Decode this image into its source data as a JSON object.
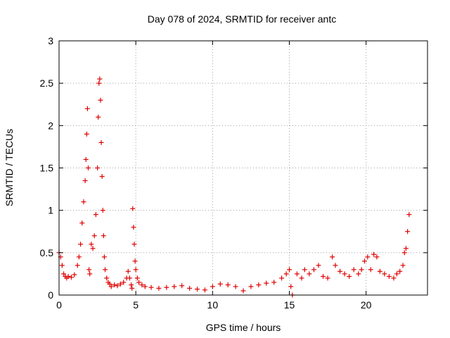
{
  "chart_data": {
    "type": "scatter",
    "title": "Day 078 of 2024, SRMTID for receiver antc",
    "xlabel": "GPS time / hours",
    "ylabel": "SRMTID / TECUs",
    "xlim": [
      0,
      24
    ],
    "ylim": [
      0,
      3
    ],
    "xticks": [
      0,
      5,
      10,
      15,
      20
    ],
    "xtick_labels": [
      "0",
      "5",
      "10",
      "15",
      "20"
    ],
    "yticks": [
      0,
      0.5,
      1,
      1.5,
      2,
      2.5,
      3
    ],
    "ytick_labels": [
      "0",
      "0.5",
      "1",
      "1.5",
      "2",
      "2.5",
      "3"
    ],
    "grid": true,
    "marker": "+",
    "color": "#e00000",
    "series": [
      {
        "name": "SRMTID",
        "x": [
          0.0,
          0.1,
          0.2,
          0.3,
          0.4,
          0.5,
          0.6,
          0.8,
          1.0,
          1.2,
          1.3,
          1.4,
          1.5,
          1.6,
          1.7,
          1.75,
          1.8,
          1.85,
          1.9,
          1.95,
          2.0,
          2.1,
          2.2,
          2.3,
          2.4,
          2.5,
          2.55,
          2.6,
          2.65,
          2.7,
          2.75,
          2.8,
          2.85,
          2.9,
          2.95,
          3.0,
          3.1,
          3.2,
          3.3,
          3.4,
          3.6,
          3.8,
          4.0,
          4.2,
          4.4,
          4.5,
          4.6,
          4.7,
          4.75,
          4.8,
          4.85,
          4.9,
          4.95,
          5.0,
          5.1,
          5.2,
          5.4,
          5.6,
          6.0,
          6.5,
          7.0,
          7.5,
          8.0,
          8.5,
          9.0,
          9.5,
          10.0,
          10.5,
          11.0,
          11.5,
          12.0,
          12.5,
          13.0,
          13.5,
          14.0,
          14.5,
          14.8,
          15.0,
          15.1,
          15.2,
          15.5,
          15.8,
          16.0,
          16.3,
          16.6,
          16.9,
          17.2,
          17.5,
          17.8,
          18.0,
          18.3,
          18.6,
          18.9,
          19.2,
          19.5,
          19.7,
          19.9,
          20.1,
          20.3,
          20.5,
          20.7,
          20.9,
          21.2,
          21.5,
          21.8,
          22.0,
          22.2,
          22.4,
          22.5,
          22.6,
          22.7,
          22.8
        ],
        "y": [
          0.5,
          0.45,
          0.35,
          0.25,
          0.22,
          0.2,
          0.22,
          0.21,
          0.24,
          0.35,
          0.45,
          0.6,
          0.85,
          1.1,
          1.35,
          1.6,
          1.9,
          2.2,
          1.5,
          0.3,
          0.25,
          0.6,
          0.55,
          0.7,
          0.95,
          1.5,
          2.1,
          2.5,
          2.55,
          2.3,
          1.8,
          1.4,
          1.0,
          0.7,
          0.45,
          0.3,
          0.2,
          0.15,
          0.13,
          0.1,
          0.12,
          0.11,
          0.13,
          0.15,
          0.2,
          0.28,
          0.2,
          0.12,
          0.08,
          1.02,
          0.8,
          0.6,
          0.4,
          0.3,
          0.2,
          0.15,
          0.12,
          0.1,
          0.09,
          0.08,
          0.09,
          0.1,
          0.11,
          0.08,
          0.07,
          0.06,
          0.1,
          0.13,
          0.12,
          0.1,
          0.05,
          0.1,
          0.12,
          0.14,
          0.15,
          0.2,
          0.25,
          0.3,
          0.1,
          0.0,
          0.25,
          0.2,
          0.3,
          0.25,
          0.3,
          0.35,
          0.22,
          0.2,
          0.45,
          0.35,
          0.28,
          0.25,
          0.22,
          0.3,
          0.25,
          0.3,
          0.4,
          0.45,
          0.3,
          0.48,
          0.45,
          0.28,
          0.25,
          0.22,
          0.2,
          0.25,
          0.28,
          0.35,
          0.5,
          0.55,
          0.75,
          0.95
        ]
      }
    ]
  }
}
